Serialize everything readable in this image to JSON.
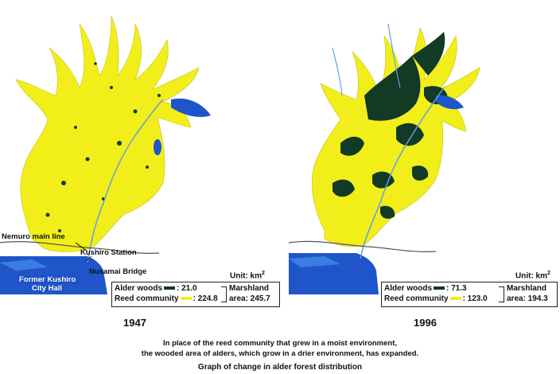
{
  "maps": [
    {
      "year": "1947",
      "labels": {
        "nemuro_line": "Nemuro main line",
        "kushiro_station": "Kushiro Station",
        "nusamai_bridge": "Nusamai Bridge",
        "city_hall_1": "Former Kushiro",
        "city_hall_2": "City Hall"
      },
      "unit_text": "Unit: km",
      "unit_sup": "2",
      "legend": {
        "alder_label": "Alder woods",
        "alder_value": ": 21.0",
        "reed_label": "Reed community",
        "reed_value": ": 224.8",
        "marsh_label": "Marshland",
        "marsh_value": "area: 245.7"
      }
    },
    {
      "year": "1996",
      "unit_text": "Unit: km",
      "unit_sup": "2",
      "legend": {
        "alder_label": "Alder woods",
        "alder_value": ": 71.3",
        "reed_label": "Reed community",
        "reed_value": ": 123.0",
        "marsh_label": "Marshland",
        "marsh_value": "area: 194.3"
      }
    }
  ],
  "colors": {
    "reed": "#f2ee1a",
    "alder": "#123a24",
    "water": "#1f55c8",
    "water_light": "#3a7de0"
  },
  "caption": {
    "line1": "In place of the reed community that grew in a moist environment,",
    "line2": "the wooded area of alders, which grow in a drier environment, has expanded.",
    "title": "Graph of change in alder forest distribution"
  }
}
